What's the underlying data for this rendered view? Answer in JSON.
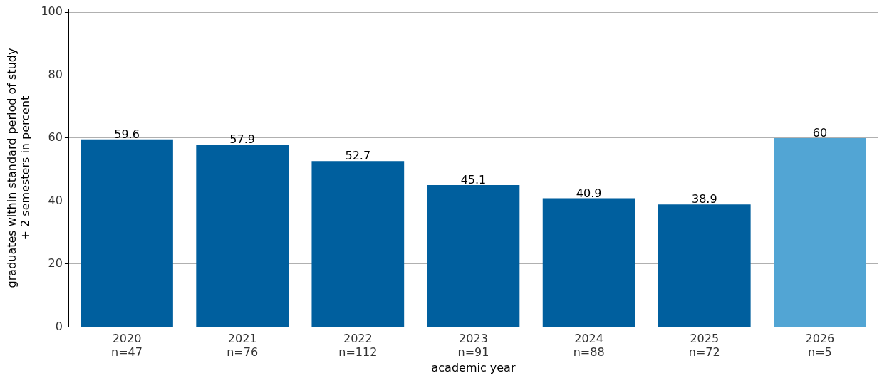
{
  "chart_data": {
    "type": "bar",
    "xlabel": "academic year",
    "ylabel": "graduates within standard period of study\n+ 2 semesters in percent",
    "categories": [
      "2020\nn=47",
      "2021\nn=76",
      "2022\nn=112",
      "2023\nn=91",
      "2024\nn=88",
      "2025\nn=72",
      "2026\nn=5"
    ],
    "values": [
      59.6,
      57.9,
      52.7,
      45.1,
      40.9,
      38.9,
      60
    ],
    "colors": [
      "#005f9e",
      "#005f9e",
      "#005f9e",
      "#005f9e",
      "#005f9e",
      "#005f9e",
      "#52a5d4"
    ],
    "ylim": [
      0,
      101
    ],
    "yticks": [
      0,
      20,
      40,
      60,
      80,
      100
    ],
    "grid": "y",
    "data_labels": true
  }
}
